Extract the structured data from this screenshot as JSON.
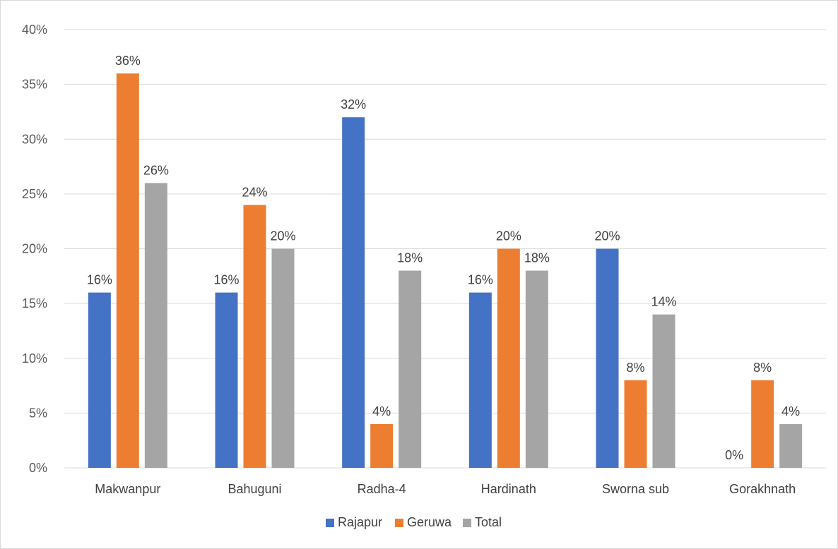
{
  "chart_data": {
    "type": "bar",
    "title": "",
    "xlabel": "",
    "ylabel": "",
    "categories": [
      "Makwanpur",
      "Bahuguni",
      "Radha-4",
      "Hardinath",
      "Sworna sub",
      "Gorakhnath"
    ],
    "series": [
      {
        "name": "Rajapur",
        "color": "#4472c4",
        "values": [
          16,
          16,
          32,
          16,
          20,
          0
        ],
        "labels": [
          "16%",
          "16%",
          "32%",
          "16%",
          "20%",
          "0%"
        ]
      },
      {
        "name": "Geruwa",
        "color": "#ed7d31",
        "values": [
          36,
          24,
          4,
          20,
          8,
          8
        ],
        "labels": [
          "36%",
          "24%",
          "4%",
          "20%",
          "8%",
          "8%"
        ]
      },
      {
        "name": "Total",
        "color": "#a5a5a5",
        "values": [
          26,
          20,
          18,
          18,
          14,
          4
        ],
        "labels": [
          "26%",
          "20%",
          "18%",
          "18%",
          "14%",
          "4%"
        ]
      }
    ],
    "ylim": [
      0,
      40
    ],
    "yticks": [
      0,
      5,
      10,
      15,
      20,
      25,
      30,
      35,
      40
    ],
    "ytick_labels": [
      "0%",
      "5%",
      "10%",
      "15%",
      "20%",
      "25%",
      "30%",
      "35%",
      "40%"
    ],
    "grid": true,
    "legend_position": "bottom"
  }
}
